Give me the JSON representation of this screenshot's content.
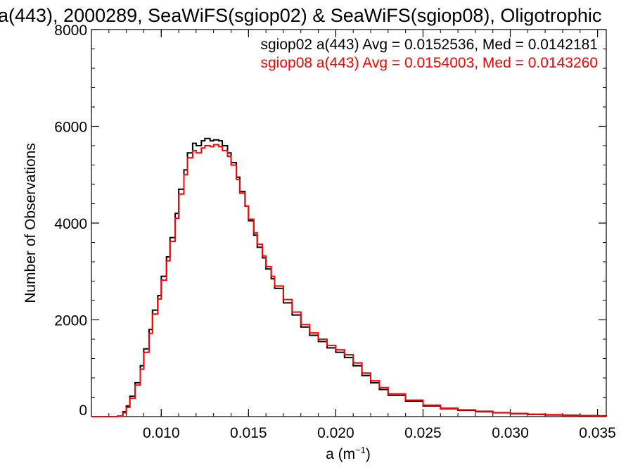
{
  "chart_data": {
    "type": "line",
    "title": "a(443), 2000289, SeaWiFS(sgiop02) & SeaWiFS(sgiop08), Oligotrophic",
    "xlabel": "a (m",
    "xlabel_exp": "−1",
    "xlabel_close": ")",
    "ylabel": "Number of Observations",
    "xlim": [
      0.006,
      0.0355
    ],
    "ylim": [
      0,
      8000
    ],
    "xticks": [
      0.01,
      0.015,
      0.02,
      0.025,
      0.03,
      0.035
    ],
    "xtick_labels": [
      "0.010",
      "0.015",
      "0.020",
      "0.025",
      "0.030",
      "0.035"
    ],
    "yticks": [
      0,
      2000,
      4000,
      6000,
      8000
    ],
    "ytick_labels": [
      "0",
      "2000",
      "4000",
      "6000",
      "8000"
    ],
    "step": true,
    "annotations": [
      {
        "text": "sgiop02 a(443) Avg = 0.0152536, Med = 0.0142181",
        "color": "#000000"
      },
      {
        "text": "sgiop08 a(443) Avg = 0.0154003, Med = 0.0143260",
        "color": "#ff0000"
      }
    ],
    "series": [
      {
        "color": "#000000",
        "x": [
          0.006,
          0.007,
          0.0075,
          0.0078,
          0.008,
          0.0082,
          0.0085,
          0.0088,
          0.009,
          0.0093,
          0.0095,
          0.0098,
          0.01,
          0.0103,
          0.0105,
          0.0108,
          0.011,
          0.0113,
          0.0115,
          0.0118,
          0.012,
          0.0123,
          0.0125,
          0.0128,
          0.013,
          0.0133,
          0.0135,
          0.0138,
          0.014,
          0.0143,
          0.0145,
          0.0148,
          0.015,
          0.0153,
          0.0155,
          0.0158,
          0.016,
          0.0163,
          0.0165,
          0.017,
          0.0175,
          0.018,
          0.0185,
          0.019,
          0.0195,
          0.02,
          0.0205,
          0.021,
          0.0215,
          0.022,
          0.0225,
          0.023,
          0.024,
          0.025,
          0.026,
          0.027,
          0.028,
          0.029,
          0.03,
          0.031,
          0.032,
          0.033,
          0.034,
          0.035,
          0.0355
        ],
        "y": [
          0,
          0,
          10,
          100,
          220,
          420,
          700,
          1050,
          1400,
          1800,
          2200,
          2500,
          2900,
          3300,
          3700,
          4200,
          4700,
          5100,
          5450,
          5650,
          5600,
          5700,
          5750,
          5700,
          5720,
          5700,
          5600,
          5450,
          5250,
          4950,
          4650,
          4350,
          4050,
          3750,
          3500,
          3280,
          3050,
          2850,
          2650,
          2350,
          2100,
          1850,
          1680,
          1550,
          1420,
          1330,
          1220,
          1050,
          850,
          700,
          560,
          440,
          320,
          220,
          165,
          130,
          100,
          80,
          60,
          45,
          35,
          28,
          20,
          15,
          10
        ]
      },
      {
        "color": "#ff0000",
        "x": [
          0.006,
          0.007,
          0.0075,
          0.0078,
          0.008,
          0.0082,
          0.0085,
          0.0088,
          0.009,
          0.0093,
          0.0095,
          0.0098,
          0.01,
          0.0103,
          0.0105,
          0.0108,
          0.011,
          0.0113,
          0.0115,
          0.0118,
          0.012,
          0.0123,
          0.0125,
          0.0128,
          0.013,
          0.0133,
          0.0135,
          0.0138,
          0.014,
          0.0143,
          0.0145,
          0.0148,
          0.015,
          0.0153,
          0.0155,
          0.0158,
          0.016,
          0.0163,
          0.0165,
          0.017,
          0.0175,
          0.018,
          0.0185,
          0.019,
          0.0195,
          0.02,
          0.0205,
          0.021,
          0.0215,
          0.022,
          0.0225,
          0.023,
          0.024,
          0.025,
          0.026,
          0.027,
          0.028,
          0.029,
          0.03,
          0.031,
          0.032,
          0.033,
          0.034,
          0.035,
          0.0355
        ],
        "y": [
          0,
          0,
          8,
          80,
          190,
          380,
          650,
          980,
          1330,
          1720,
          2120,
          2430,
          2820,
          3220,
          3620,
          4100,
          4600,
          5000,
          5350,
          5500,
          5450,
          5550,
          5600,
          5580,
          5620,
          5580,
          5500,
          5380,
          5200,
          4900,
          4620,
          4350,
          4080,
          3800,
          3560,
          3320,
          3100,
          2900,
          2700,
          2420,
          2160,
          1900,
          1730,
          1600,
          1470,
          1380,
          1280,
          1110,
          900,
          740,
          600,
          470,
          340,
          235,
          175,
          140,
          110,
          85,
          65,
          50,
          40,
          30,
          22,
          16,
          10
        ]
      }
    ]
  }
}
